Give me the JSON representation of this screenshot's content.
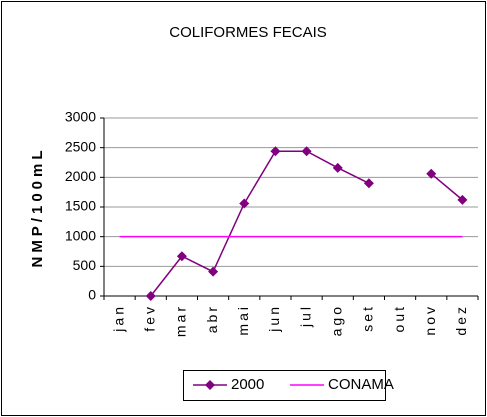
{
  "chart_data": {
    "type": "line",
    "title": "COLIFORMES FECAIS",
    "y_label": "NMP/100mL",
    "categories": [
      "jan",
      "fev",
      "mar",
      "abr",
      "mai",
      "jun",
      "jul",
      "ago",
      "set",
      "out",
      "nov",
      "dez"
    ],
    "series": [
      {
        "name": "2000",
        "color": "#800080",
        "marker": "diamond",
        "values": [
          null,
          0,
          670,
          410,
          1560,
          2440,
          2440,
          2160,
          1900,
          null,
          2060,
          1620
        ]
      },
      {
        "name": "CONAMA",
        "color": "#ff00ff",
        "marker": "none",
        "values": [
          1000,
          1000,
          1000,
          1000,
          1000,
          1000,
          1000,
          1000,
          1000,
          1000,
          1000,
          1000
        ]
      }
    ],
    "ylim": [
      0,
      3000
    ],
    "yticks": [
      0,
      500,
      1000,
      1500,
      2000,
      2500,
      3000
    ],
    "grid": true,
    "legend": "bottom"
  }
}
